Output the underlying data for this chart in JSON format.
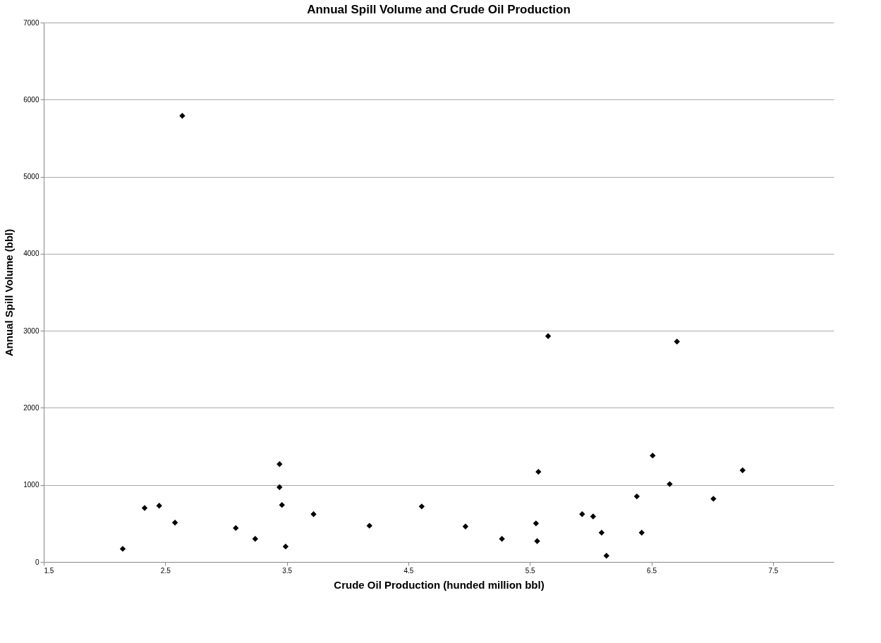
{
  "chart_data": {
    "type": "scatter",
    "title": "Annual Spill Volume and Crude Oil Production",
    "xlabel": "Crude Oil Production (hunded million bbl)",
    "ylabel": "Annual Spill Volume (bbl)",
    "x": [
      2.15,
      2.33,
      2.45,
      2.58,
      2.64,
      3.08,
      3.24,
      3.44,
      3.44,
      3.46,
      3.49,
      3.72,
      4.18,
      4.61,
      4.97,
      5.27,
      5.55,
      5.56,
      5.57,
      5.65,
      5.93,
      6.02,
      6.09,
      6.13,
      6.38,
      6.42,
      6.51,
      6.65,
      6.71,
      7.01,
      7.25
    ],
    "values": [
      170,
      700,
      730,
      510,
      5790,
      440,
      300,
      1270,
      970,
      740,
      200,
      620,
      470,
      720,
      460,
      300,
      500,
      270,
      1170,
      2930,
      620,
      590,
      380,
      80,
      850,
      380,
      1380,
      1010,
      2860,
      820,
      1190
    ],
    "color": "#000000",
    "marker": "diamond",
    "xlim": [
      1.5,
      8
    ],
    "xticks": [
      1.5,
      2.5,
      3.5,
      4.5,
      5.5,
      6.5,
      7.5
    ],
    "ylim": [
      0,
      7000
    ],
    "yticks": [
      0,
      1000,
      2000,
      3000,
      4000,
      5000,
      6000,
      7000
    ],
    "grid": "y"
  }
}
